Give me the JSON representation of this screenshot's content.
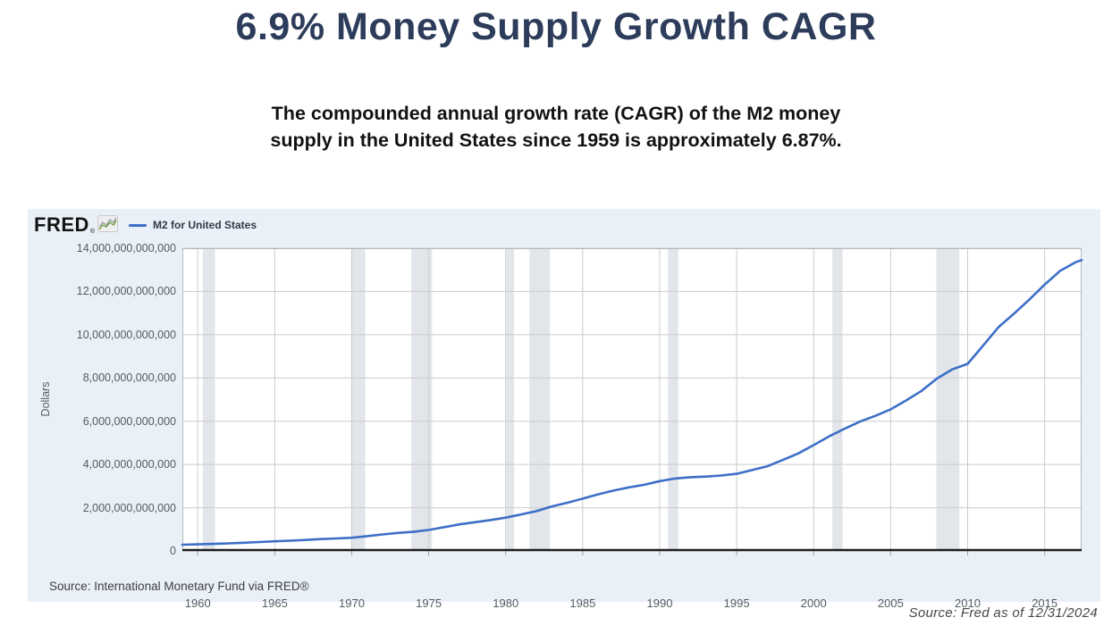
{
  "page": {
    "title": "6.9% Money Supply Growth CAGR",
    "subtitle_line1": "The compounded annual growth rate (CAGR) of the M2 money",
    "subtitle_line2": "supply in the United States since 1959 is approximately 6.87%.",
    "footer_source": "Source: Fred as of 12/31/2024"
  },
  "fred_chart": {
    "logo_text": "FRED",
    "logo_registered": "®",
    "legend_label": "M2 for United States",
    "y_axis_title": "Dollars",
    "source_note": "Source: International Monetary Fund via FRED®"
  },
  "chart_data": {
    "type": "line",
    "title": "M2 for United States",
    "xlabel": "",
    "ylabel": "Dollars",
    "legend_position": "top-left",
    "grid": true,
    "x_range": [
      1959.0,
      2017.4
    ],
    "y_range_billions": [
      0,
      14000
    ],
    "x_ticks": [
      1960,
      1965,
      1970,
      1975,
      1980,
      1985,
      1990,
      1995,
      2000,
      2005,
      2010,
      2015
    ],
    "y_ticks": [
      {
        "value_billions": 0,
        "label": "0"
      },
      {
        "value_billions": 2000,
        "label": "2,000,000,000,000"
      },
      {
        "value_billions": 4000,
        "label": "4,000,000,000,000"
      },
      {
        "value_billions": 6000,
        "label": "6,000,000,000,000"
      },
      {
        "value_billions": 8000,
        "label": "8,000,000,000,000"
      },
      {
        "value_billions": 10000,
        "label": "10,000,000,000,000"
      },
      {
        "value_billions": 12000,
        "label": "12,000,000,000,000"
      },
      {
        "value_billions": 14000,
        "label": "14,000,000,000,000"
      }
    ],
    "recession_bands": [
      [
        1960.33,
        1961.12
      ],
      [
        1969.96,
        1970.88
      ],
      [
        1973.87,
        1975.21
      ],
      [
        1980.04,
        1980.54
      ],
      [
        1981.54,
        1982.87
      ],
      [
        1990.54,
        1991.21
      ],
      [
        2001.21,
        2001.87
      ],
      [
        2007.96,
        2009.46
      ]
    ],
    "series": [
      {
        "name": "M2 for United States",
        "color": "#3d6fc7",
        "x_years": [
          1959,
          1960,
          1961,
          1962,
          1963,
          1964,
          1965,
          1966,
          1967,
          1968,
          1969,
          1970,
          1971,
          1972,
          1973,
          1974,
          1975,
          1976,
          1977,
          1978,
          1979,
          1980,
          1981,
          1982,
          1983,
          1984,
          1985,
          1986,
          1987,
          1988,
          1989,
          1990,
          1991,
          1992,
          1993,
          1994,
          1995,
          1996,
          1997,
          1998,
          1999,
          2000,
          2001,
          2002,
          2003,
          2004,
          2005,
          2006,
          2007,
          2008,
          2009,
          2010,
          2011,
          2012,
          2013,
          2014,
          2015,
          2016,
          2017,
          2017.4
        ],
        "y_billions": [
          290,
          304,
          328,
          353,
          382,
          412,
          445,
          473,
          510,
          550,
          580,
          610,
          685,
          765,
          835,
          885,
          970,
          1100,
          1230,
          1330,
          1430,
          1540,
          1690,
          1840,
          2060,
          2230,
          2420,
          2620,
          2790,
          2940,
          3060,
          3230,
          3350,
          3410,
          3440,
          3490,
          3570,
          3740,
          3920,
          4210,
          4510,
          4900,
          5300,
          5650,
          5980,
          6250,
          6550,
          6960,
          7400,
          7970,
          8400,
          8650,
          9500,
          10350,
          10970,
          11620,
          12320,
          12950,
          13350,
          13450
        ]
      }
    ],
    "colors": {
      "panel_background": "#e9f0f8",
      "plot_background": "#ffffff",
      "gridline": "#cccccc",
      "plot_border": "#b4b7bb",
      "axis": "#1d1d1d",
      "recession_band": "#e2e5ea",
      "tick_mark": "#9aa0a6",
      "line": "#3d6fc7",
      "title_text": "#2d3c5a"
    }
  }
}
